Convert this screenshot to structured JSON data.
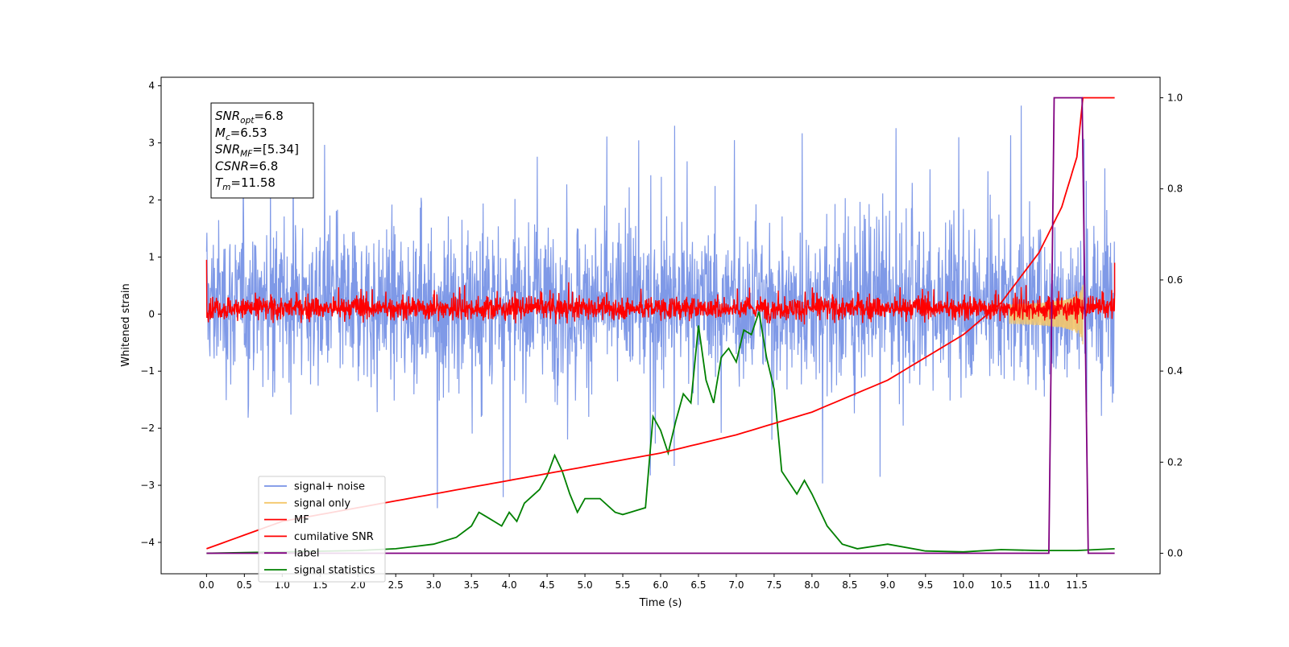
{
  "chart_data": {
    "type": "line",
    "xlabel": "Time (s)",
    "ylabel": "Whitened strain",
    "xlim": [
      -0.6,
      12.6
    ],
    "ylim": [
      -4.55,
      4.15
    ],
    "y2lim": [
      -0.045,
      1.045
    ],
    "x_ticks": [
      "0.0",
      "0.5",
      "1.0",
      "1.5",
      "2.0",
      "2.5",
      "3.0",
      "3.5",
      "4.0",
      "4.5",
      "5.0",
      "5.5",
      "6.0",
      "6.5",
      "7.0",
      "7.5",
      "8.0",
      "8.5",
      "9.0",
      "9.5",
      "10.0",
      "10.5",
      "11.0",
      "11.5"
    ],
    "y_ticks": [
      "4",
      "3",
      "2",
      "1",
      "0",
      "−1",
      "−2",
      "−3",
      "−4"
    ],
    "y2_ticks": [
      "1.0",
      "0.8",
      "0.6",
      "0.4",
      "0.2",
      "0.0"
    ],
    "info_box": [
      {
        "base": "SNR",
        "sub": "opt",
        "value": "=6.8"
      },
      {
        "base": "M",
        "sub": "c",
        "value": "=6.53"
      },
      {
        "base": "SNR",
        "sub": "MF",
        "value": "=[5.34]"
      },
      {
        "base": "CSNR",
        "sub": "",
        "value": "=6.8"
      },
      {
        "base": "T",
        "sub": "m",
        "value": "=11.58"
      }
    ],
    "legend_position": "lower-left",
    "series": [
      {
        "name": "signal+ noise",
        "color": "#7893e6",
        "axis": "left",
        "description_range": [
          -3.6,
          3.8
        ],
        "x_range": [
          0.0,
          12.0
        ]
      },
      {
        "name": "signal only",
        "color": "#f4c76a",
        "axis": "left",
        "amplitude_peak": 0.55,
        "peak_time": 11.58
      },
      {
        "name": "MF",
        "color": "#ff0000",
        "axis": "left",
        "typical_range": [
          -0.35,
          0.65
        ]
      },
      {
        "name": "cumilative SNR",
        "color": "#ff0000",
        "axis": "right",
        "x": [
          0.0,
          1.0,
          2.0,
          3.0,
          4.0,
          5.0,
          6.0,
          7.0,
          8.0,
          9.0,
          10.0,
          10.5,
          11.0,
          11.3,
          11.5,
          11.58,
          12.0
        ],
        "y": [
          0.01,
          0.07,
          0.1,
          0.13,
          0.16,
          0.19,
          0.22,
          0.26,
          0.31,
          0.38,
          0.48,
          0.55,
          0.66,
          0.76,
          0.87,
          1.0,
          1.0
        ]
      },
      {
        "name": "label",
        "color": "#800080",
        "axis": "right",
        "x": [
          0.0,
          11.13,
          11.2,
          11.57,
          11.65,
          12.0
        ],
        "y": [
          0.0,
          0.0,
          1.0,
          1.0,
          0.0,
          0.0
        ]
      },
      {
        "name": "signal statistics",
        "color": "#008000",
        "axis": "right",
        "x": [
          0.0,
          1.0,
          2.0,
          2.5,
          3.0,
          3.3,
          3.5,
          3.6,
          3.7,
          3.8,
          3.9,
          4.0,
          4.1,
          4.2,
          4.4,
          4.5,
          4.6,
          4.7,
          4.8,
          4.9,
          5.0,
          5.2,
          5.4,
          5.5,
          5.6,
          5.8,
          5.9,
          6.0,
          6.1,
          6.2,
          6.3,
          6.4,
          6.5,
          6.6,
          6.7,
          6.8,
          6.9,
          7.0,
          7.1,
          7.2,
          7.3,
          7.4,
          7.5,
          7.6,
          7.8,
          7.9,
          8.0,
          8.2,
          8.4,
          8.6,
          9.0,
          9.5,
          10.0,
          10.5,
          11.0,
          11.5,
          12.0
        ],
        "y": [
          0.0,
          0.003,
          0.006,
          0.01,
          0.02,
          0.035,
          0.06,
          0.09,
          0.08,
          0.07,
          0.06,
          0.09,
          0.07,
          0.11,
          0.14,
          0.17,
          0.215,
          0.18,
          0.13,
          0.09,
          0.12,
          0.12,
          0.09,
          0.085,
          0.09,
          0.1,
          0.3,
          0.27,
          0.22,
          0.29,
          0.35,
          0.33,
          0.5,
          0.38,
          0.33,
          0.43,
          0.45,
          0.42,
          0.49,
          0.48,
          0.53,
          0.43,
          0.36,
          0.18,
          0.13,
          0.16,
          0.13,
          0.06,
          0.02,
          0.01,
          0.02,
          0.005,
          0.003,
          0.008,
          0.006,
          0.006,
          0.01
        ]
      }
    ]
  }
}
